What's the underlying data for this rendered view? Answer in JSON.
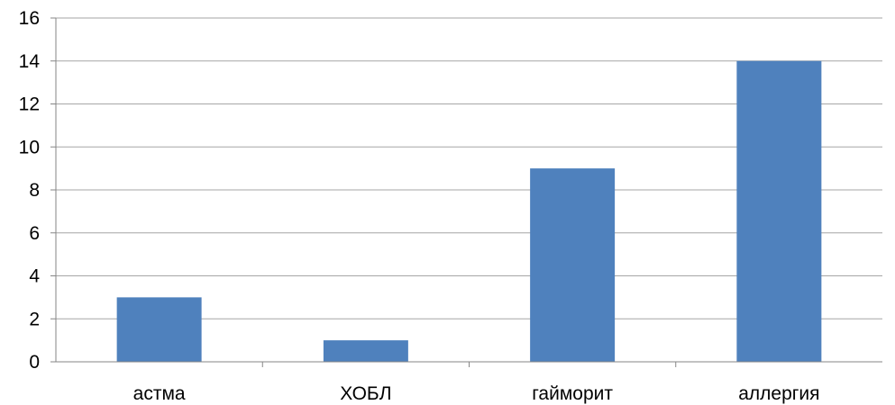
{
  "chart_data": {
    "type": "bar",
    "categories": [
      "астма",
      "ХОБЛ",
      "гайморит",
      "аллергия"
    ],
    "series": [
      {
        "values": [
          3,
          1,
          9,
          14
        ]
      }
    ],
    "ylim": [
      0,
      16
    ],
    "yticks": [
      0,
      2,
      4,
      6,
      8,
      10,
      12,
      14,
      16
    ],
    "grid": true,
    "bar_color": "#4f81bd",
    "grid_color": "#a6a6a6",
    "axis_color": "#868686"
  }
}
